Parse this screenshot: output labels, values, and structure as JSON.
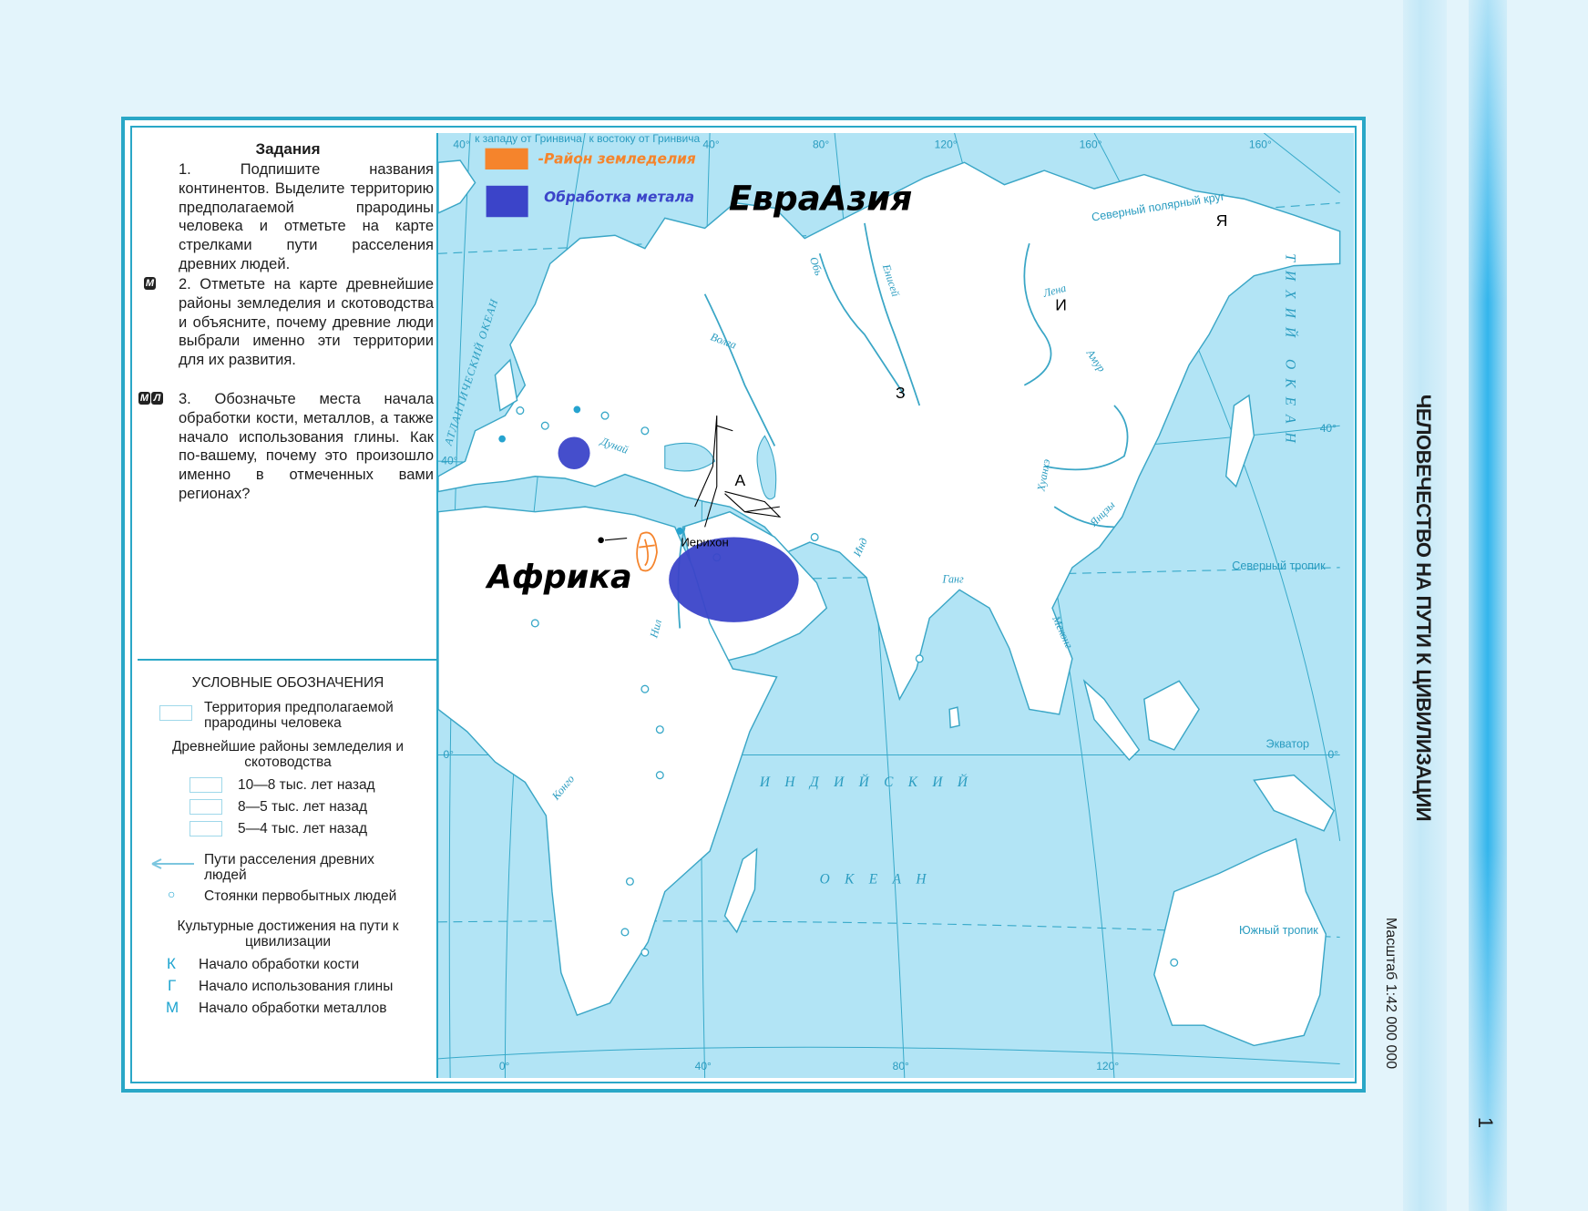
{
  "tasks": {
    "title": "Задания",
    "items": [
      {
        "marks": [],
        "text": "1. Подпишите названия континентов. Выделите территорию предполагаемой прародины человека и отметьте на карте стрелками пути расселения древних людей."
      },
      {
        "marks": [
          "М"
        ],
        "text": "2. Отметьте на карте древнейшие районы земледелия и скотоводства и объясните, почему древние люди выбрали именно эти территории для их развития."
      },
      {
        "marks": [
          "М",
          "Л"
        ],
        "text": "3. Обозначьте места начала обработки кости, металлов, а также начало использования глины. Как по-вашему, почему это произошло именно в отмеченных вами регионах?"
      }
    ]
  },
  "legend": {
    "title": "УСЛОВНЫЕ ОБОЗНАЧЕНИЯ",
    "homeland": "Территория предполагаемой прародины человека",
    "farming_title": "Древнейшие районы земледелия и скотоводства",
    "farming_periods": [
      "10—8 тыс. лет назад",
      "8—5 тыс. лет назад",
      "5—4 тыс. лет назад"
    ],
    "routes": "Пути расселения древних людей",
    "sites": "Стоянки первобытных людей",
    "culture_title": "Культурные достижения на пути к цивилизации",
    "achievements": [
      {
        "symbol": "К",
        "label": "Начало обработки кости"
      },
      {
        "symbol": "Г",
        "label": "Начало использования глины"
      },
      {
        "symbol": "М",
        "label": "Начало обработки металлов"
      }
    ]
  },
  "map": {
    "west_label": "к западу от Гринвича",
    "east_label": "к востоку от Гринвича",
    "degrees": {
      "top": [
        "40°",
        "40°",
        "80°",
        "120°",
        "160°",
        "160°"
      ],
      "left": [
        "40°",
        "0°"
      ],
      "right": [
        "40°",
        "0°"
      ],
      "bottom": [
        "0°",
        "40°",
        "80°",
        "120°"
      ]
    },
    "parallels": {
      "arctic": "Северный полярный круг",
      "tropic_n": "Северный тропик",
      "equator": "Экватор",
      "tropic_s": "Южный тропик"
    },
    "oceans": {
      "atlantic": "АТЛАНТИЧЕСКИЙ ОКЕАН",
      "indian_1": "ИНДИЙСКИЙ",
      "indian_2": "ОКЕАН",
      "pacific": "ТИХИЙ ОКЕАН"
    },
    "rivers": [
      "Волга",
      "Обь",
      "Енисей",
      "Лена",
      "Амур",
      "Хуанхэ",
      "Янцзы",
      "Инд",
      "Ганг",
      "Меконг",
      "Нил",
      "Конго",
      "Дунай"
    ],
    "annotations": {
      "farming_legend": "-Район земледелия",
      "metal_legend": "Обработка метала",
      "eurasia": "ЕвраАзия",
      "africa": "Африка",
      "jericho": "Иерихон",
      "letters": [
        "Я",
        "И",
        "З",
        "А"
      ],
      "farming_color": "#f5842c",
      "metal_color": "#3b44c9"
    }
  },
  "side": {
    "title": "ЧЕЛОВЕЧЕСТВО НА ПУТИ К ЦИВИЛИЗАЦИИ",
    "scale": "Масштаб 1:42 000 000",
    "page_number": "1"
  }
}
